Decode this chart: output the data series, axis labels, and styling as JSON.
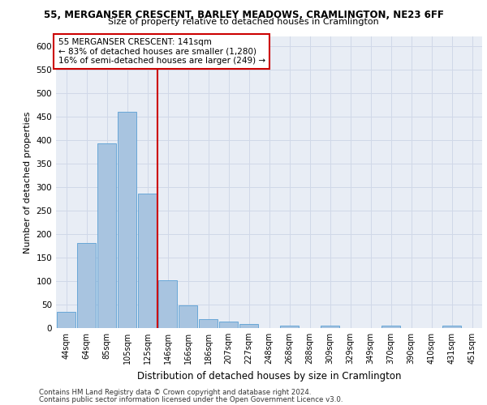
{
  "title_line1": "55, MERGANSER CRESCENT, BARLEY MEADOWS, CRAMLINGTON, NE23 6FF",
  "title_line2": "Size of property relative to detached houses in Cramlington",
  "xlabel": "Distribution of detached houses by size in Cramlington",
  "ylabel": "Number of detached properties",
  "categories": [
    "44sqm",
    "64sqm",
    "85sqm",
    "105sqm",
    "125sqm",
    "146sqm",
    "166sqm",
    "186sqm",
    "207sqm",
    "227sqm",
    "248sqm",
    "268sqm",
    "288sqm",
    "309sqm",
    "329sqm",
    "349sqm",
    "370sqm",
    "390sqm",
    "410sqm",
    "431sqm",
    "451sqm"
  ],
  "values": [
    35,
    180,
    393,
    460,
    286,
    102,
    48,
    19,
    13,
    8,
    0,
    5,
    0,
    5,
    0,
    0,
    5,
    0,
    0,
    5,
    0
  ],
  "bar_color": "#a8c4e0",
  "bar_edge_color": "#5a9fd4",
  "vline_color": "#cc0000",
  "vline_x_index": 4.5,
  "annotation_text": "55 MERGANSER CRESCENT: 141sqm\n← 83% of detached houses are smaller (1,280)\n16% of semi-detached houses are larger (249) →",
  "annotation_box_color": "#ffffff",
  "annotation_box_edge_color": "#cc0000",
  "ylim": [
    0,
    620
  ],
  "yticks": [
    0,
    50,
    100,
    150,
    200,
    250,
    300,
    350,
    400,
    450,
    500,
    550,
    600
  ],
  "grid_color": "#d0d8e8",
  "bg_color": "#e8edf5",
  "footer_line1": "Contains HM Land Registry data © Crown copyright and database right 2024.",
  "footer_line2": "Contains public sector information licensed under the Open Government Licence v3.0."
}
